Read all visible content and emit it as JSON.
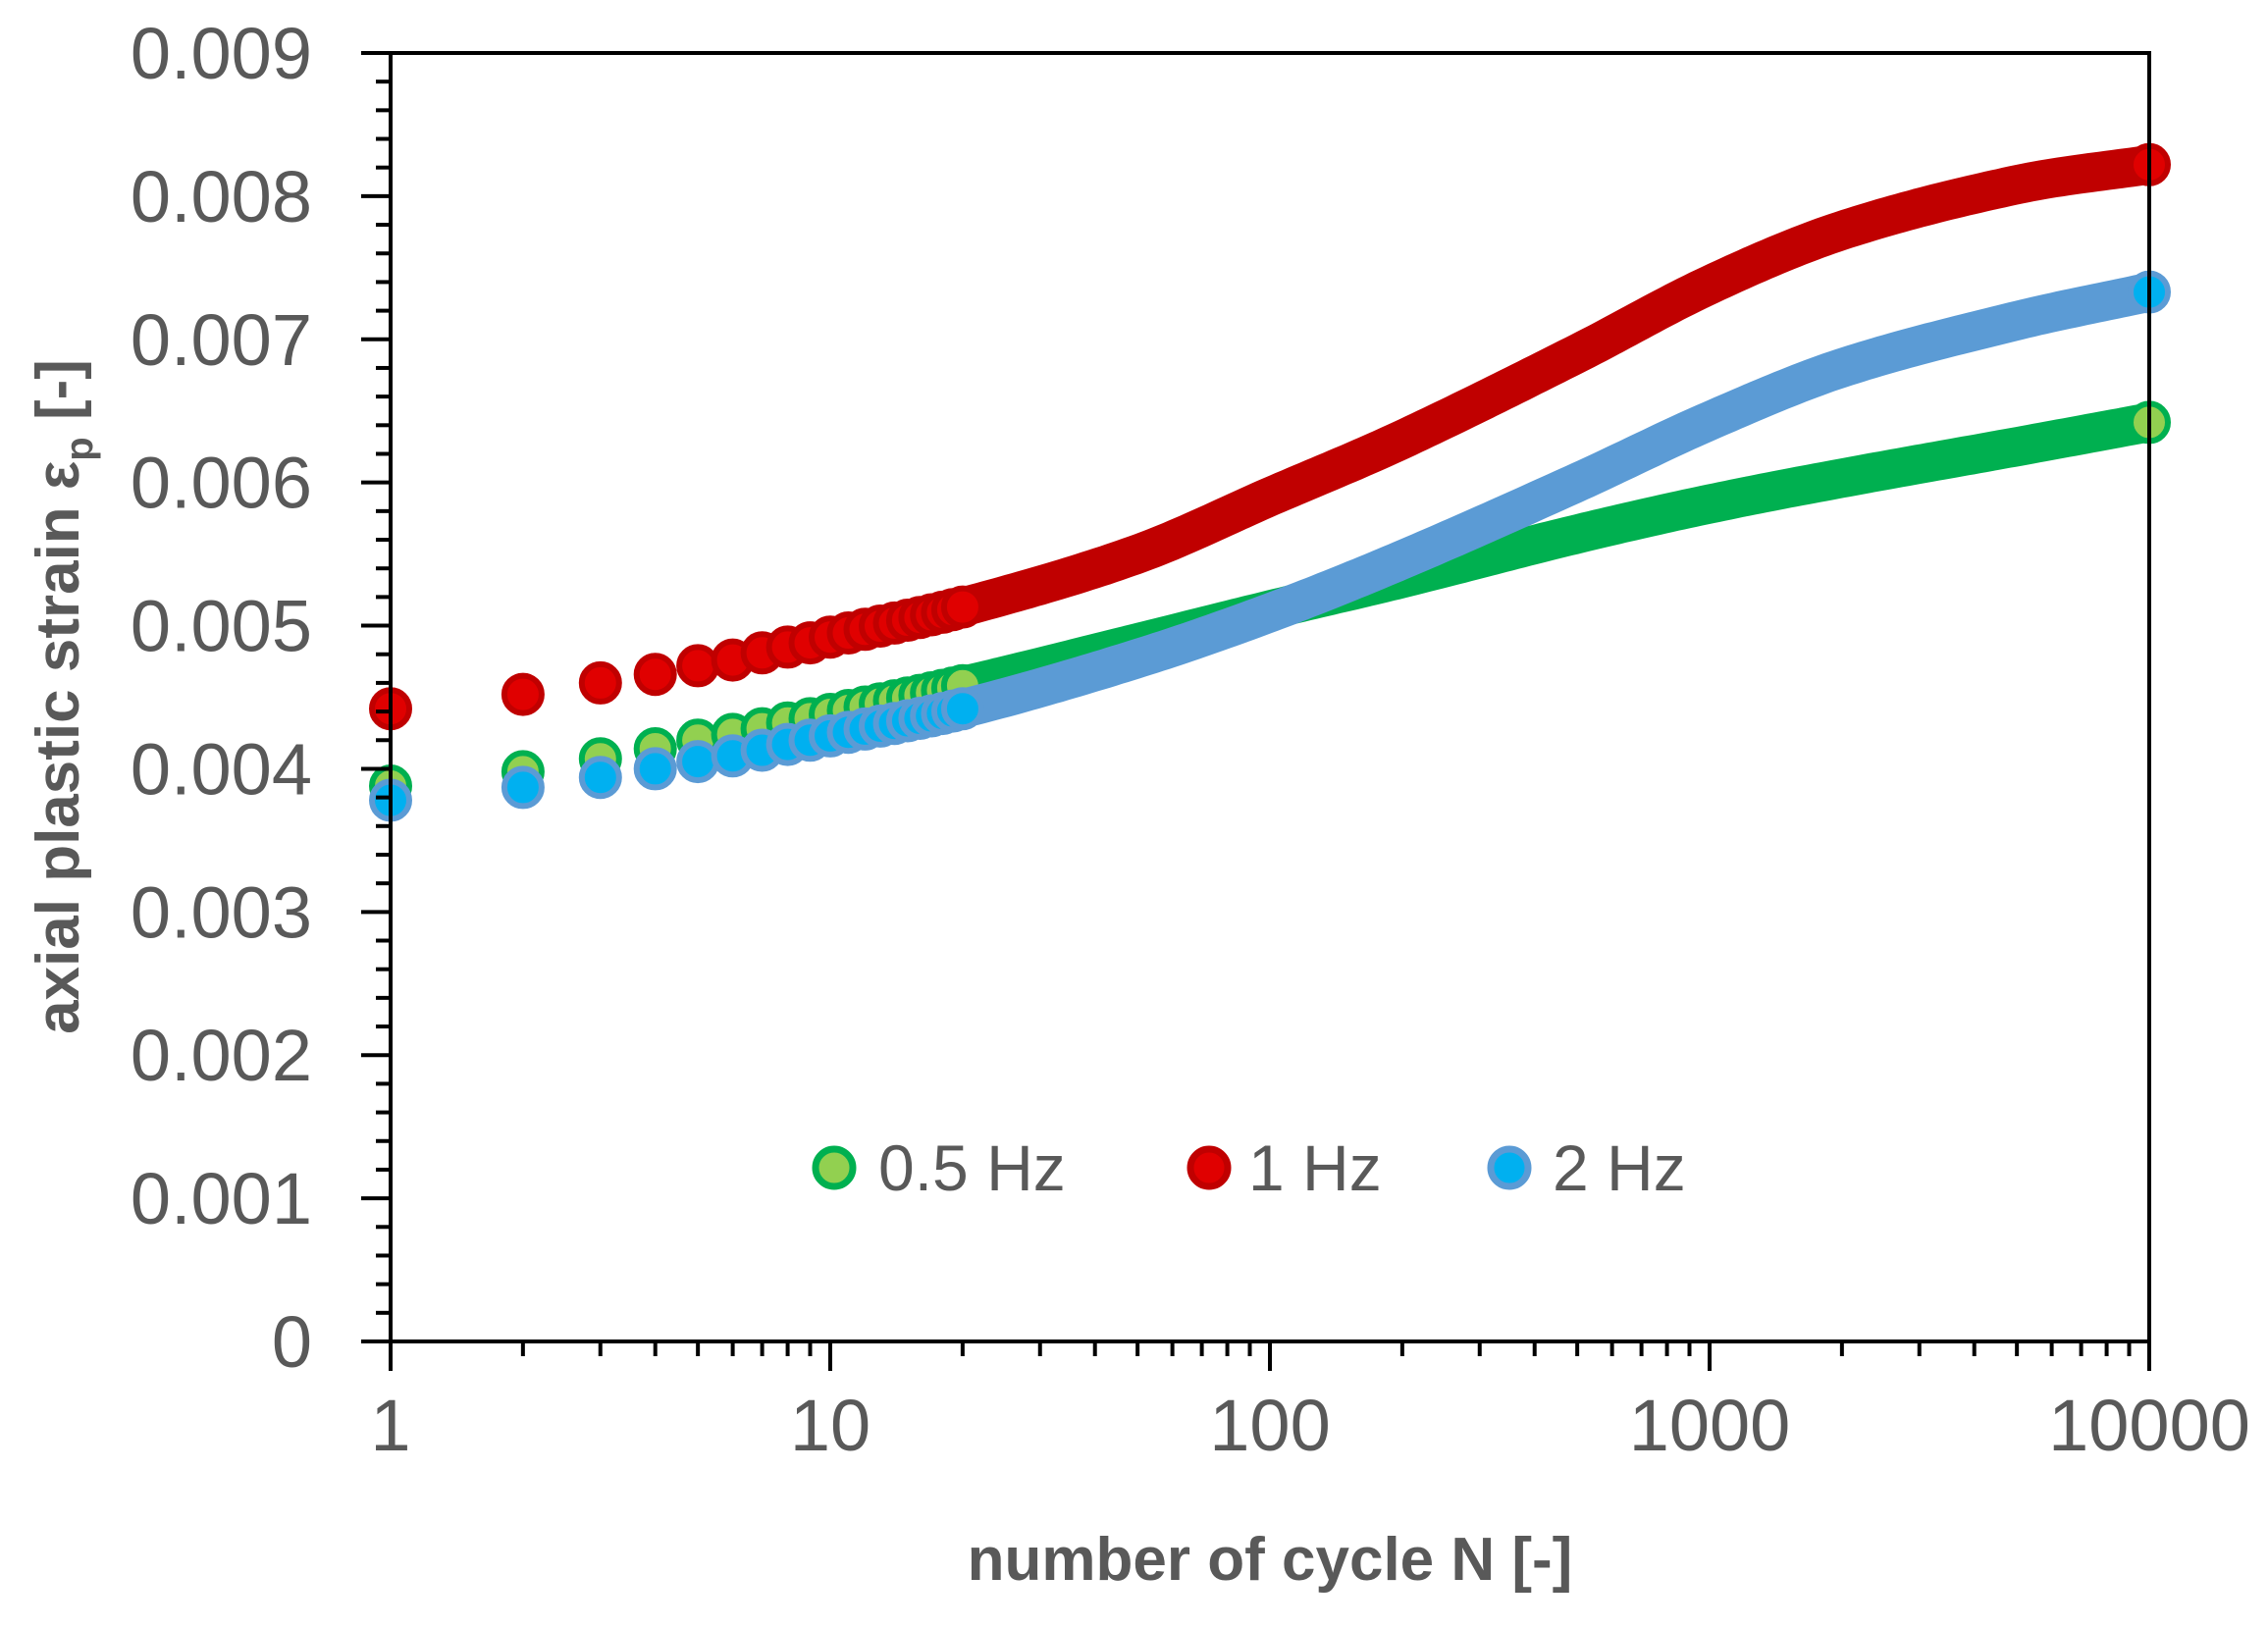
{
  "chart_data": {
    "type": "scatter",
    "title": "",
    "xlabel": "number of cycle N [-]",
    "ylabel_main": "axial plastic strain ε",
    "ylabel_sub": "p",
    "ylabel_suffix": " [-]",
    "x_scale": "log",
    "xlim": [
      1,
      10000
    ],
    "ylim": [
      0,
      0.009
    ],
    "x_ticks": [
      1,
      10,
      100,
      1000,
      10000
    ],
    "x_tick_labels": [
      "1",
      "10",
      "100",
      "1000",
      "10000"
    ],
    "y_ticks": [
      0,
      0.001,
      0.002,
      0.003,
      0.004,
      0.005,
      0.006,
      0.007,
      0.008,
      0.009
    ],
    "y_tick_labels": [
      "0",
      "0.001",
      "0.002",
      "0.003",
      "0.004",
      "0.005",
      "0.006",
      "0.007",
      "0.008",
      "0.009"
    ],
    "legend_position": "bottom-center",
    "series": [
      {
        "name": "0.5 Hz",
        "fill": "#92d050",
        "stroke": "#00b050",
        "line_color": "#00b050",
        "x": [
          1,
          2,
          3,
          4,
          5,
          6,
          7,
          8,
          9,
          10,
          20,
          50,
          100,
          200,
          500,
          1000,
          2000,
          5000,
          10000
        ],
        "y": [
          0.00388,
          0.00398,
          0.00407,
          0.00414,
          0.0042,
          0.00424,
          0.00428,
          0.00432,
          0.00435,
          0.00438,
          0.00458,
          0.00488,
          0.00511,
          0.00533,
          0.00564,
          0.00585,
          0.00603,
          0.00625,
          0.00642
        ]
      },
      {
        "name": "1 Hz",
        "fill": "#e00000",
        "stroke": "#c00000",
        "line_color": "#c00000",
        "x": [
          1,
          2,
          3,
          4,
          5,
          6,
          7,
          8,
          9,
          10,
          20,
          50,
          100,
          200,
          500,
          1000,
          2000,
          5000,
          10000
        ],
        "y": [
          0.00442,
          0.00452,
          0.0046,
          0.00466,
          0.00472,
          0.00476,
          0.00481,
          0.00485,
          0.00488,
          0.00492,
          0.00513,
          0.0055,
          0.0059,
          0.0063,
          0.0069,
          0.00738,
          0.00776,
          0.00808,
          0.00822
        ]
      },
      {
        "name": "2 Hz",
        "fill": "#00b0f0",
        "stroke": "#5b9bd5",
        "line_color": "#5b9bd5",
        "x": [
          1,
          2,
          3,
          4,
          5,
          6,
          7,
          8,
          9,
          10,
          20,
          50,
          100,
          200,
          500,
          1000,
          2000,
          5000,
          10000
        ],
        "y": [
          0.00378,
          0.00387,
          0.00394,
          0.004,
          0.00405,
          0.00409,
          0.00413,
          0.00417,
          0.0042,
          0.00423,
          0.00442,
          0.00477,
          0.00509,
          0.00546,
          0.006,
          0.00643,
          0.0068,
          0.00713,
          0.00733
        ]
      }
    ]
  }
}
